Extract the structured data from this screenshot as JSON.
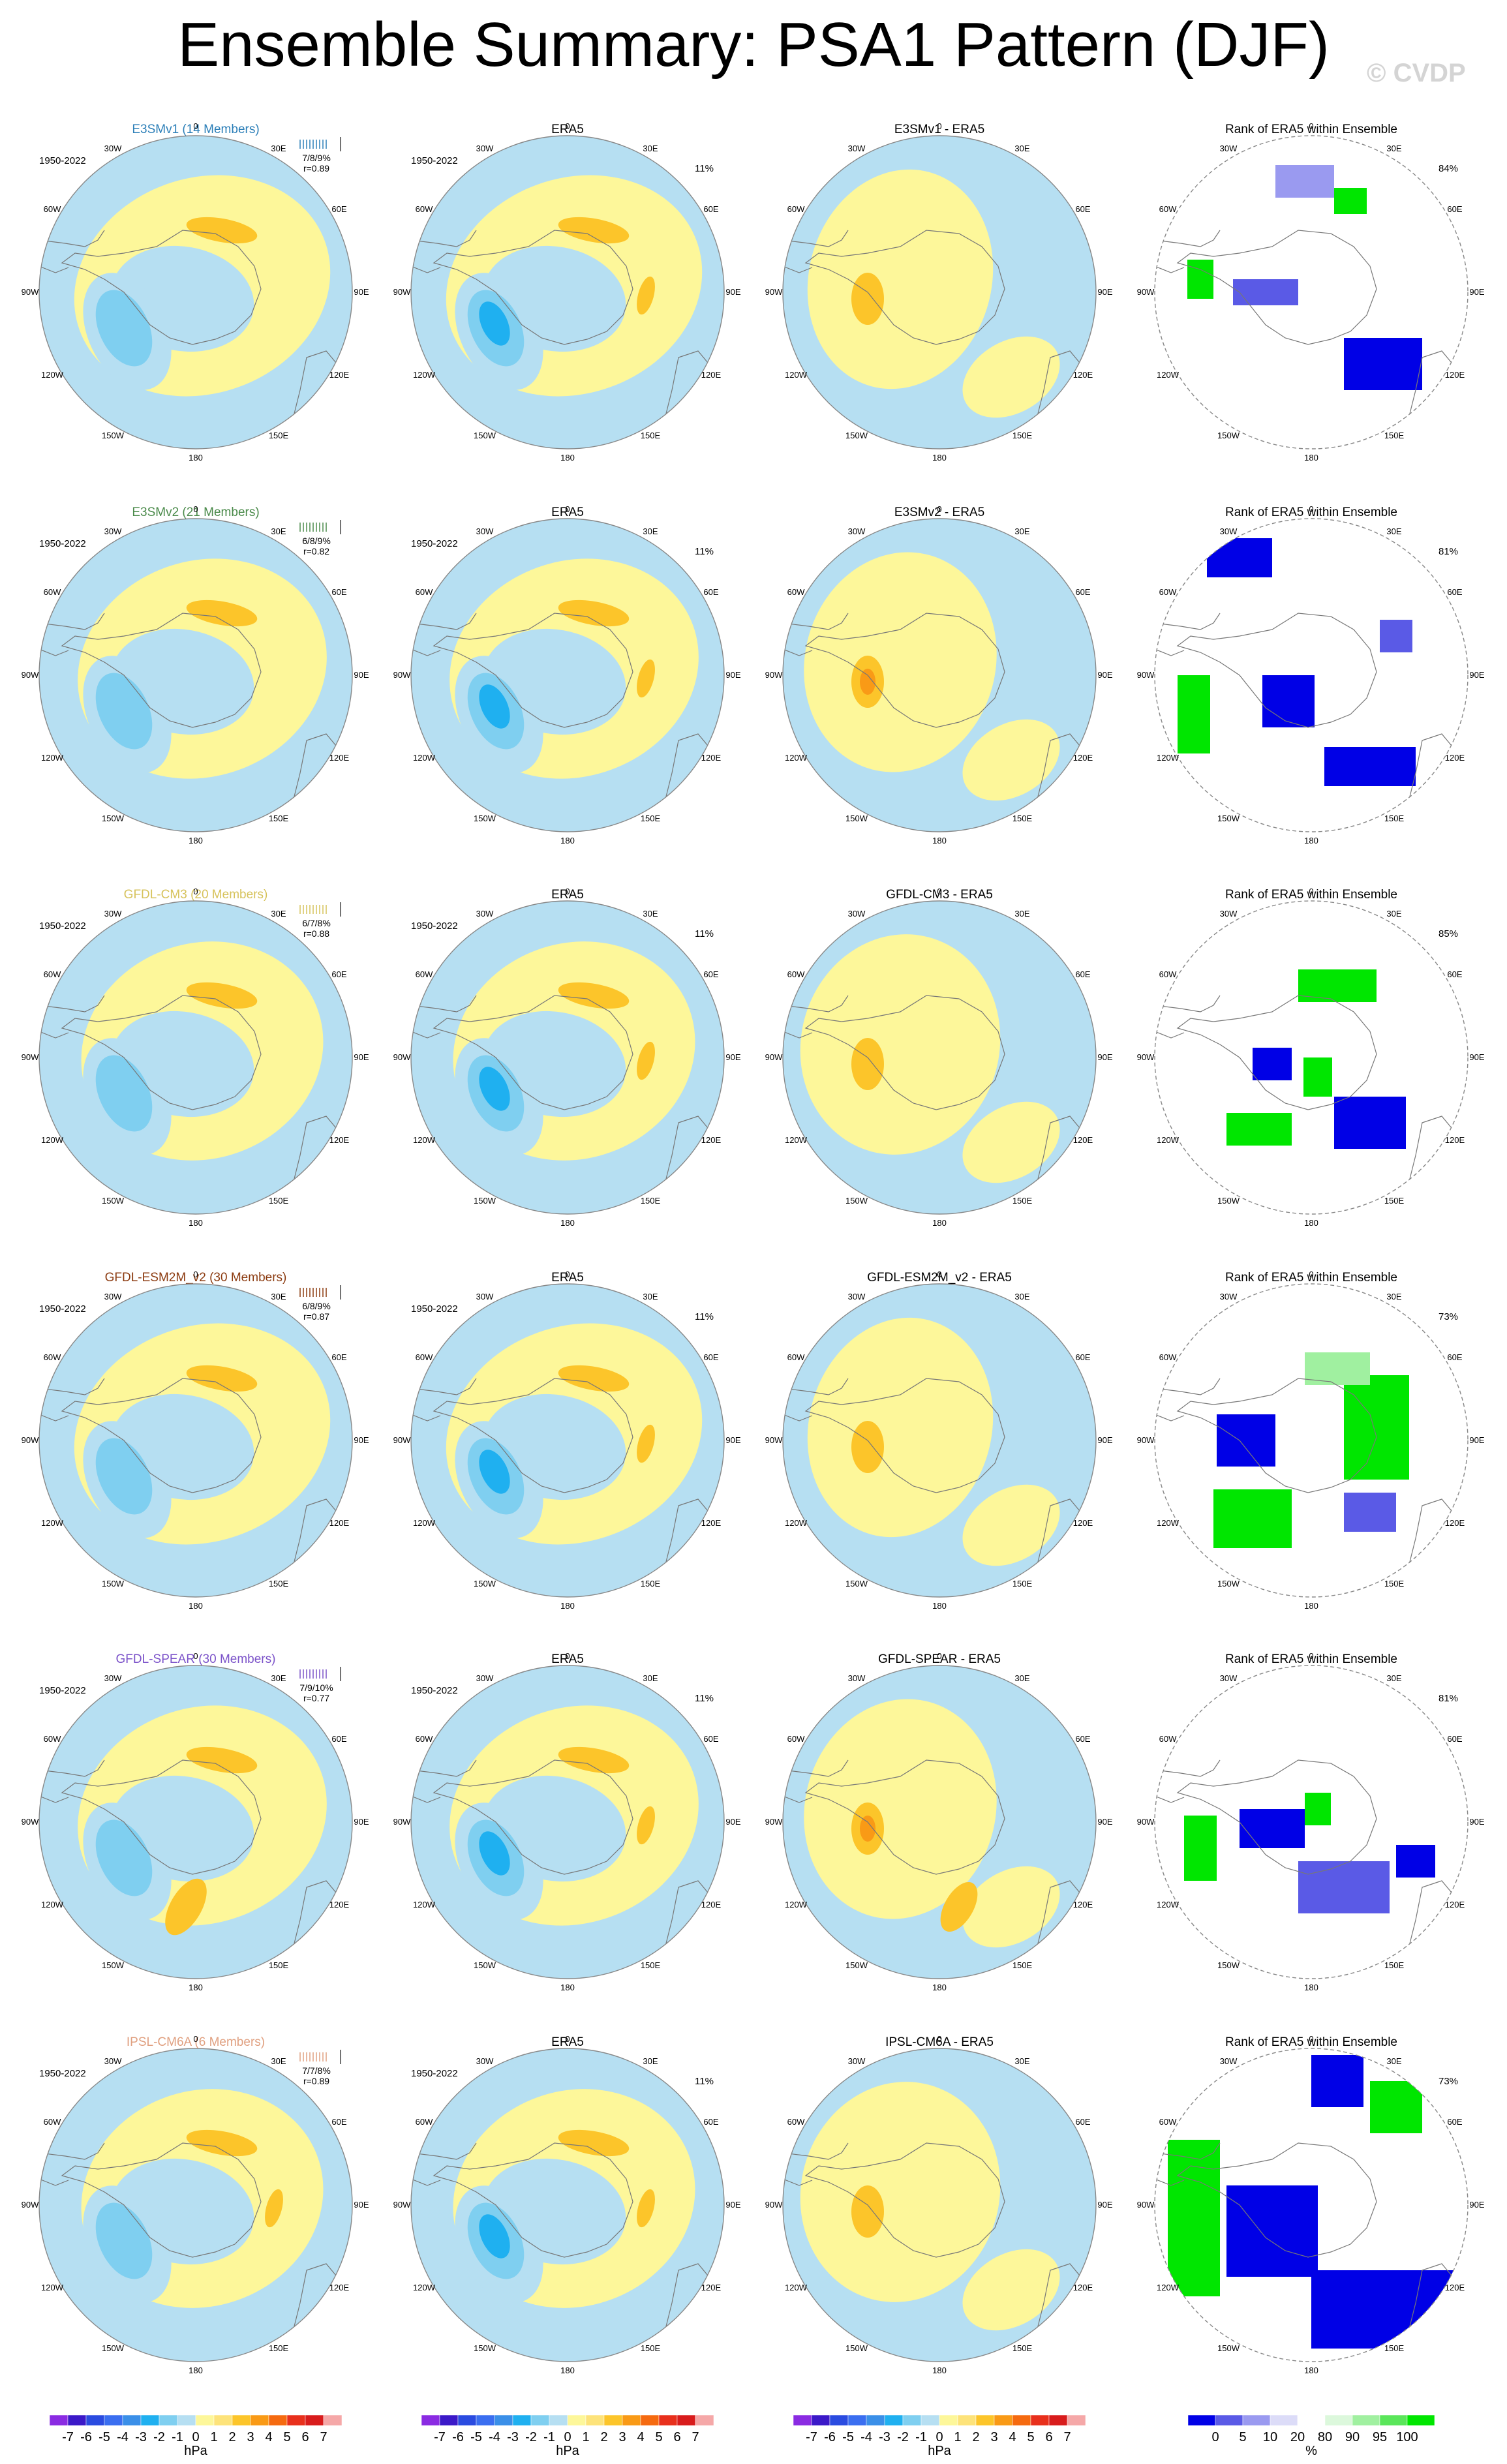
{
  "figure": {
    "title": "Ensemble Summary: PSA1 Pattern (DJF)",
    "watermark": "© CVDP"
  },
  "lon_labels": [
    "0",
    "30E",
    "60E",
    "90E",
    "120E",
    "150E",
    "180",
    "150W",
    "120W",
    "90W",
    "60W",
    "30W"
  ],
  "rows": [
    {
      "model": "E3SMv1 (14 Members)",
      "model_color": "#2c7fb8",
      "period": "1950-2022",
      "stats_pct": "7/8/9%",
      "stats_r": "r=0.89",
      "era5_title": "ERA5",
      "era5_period": "1950-2022",
      "era5_pct": "11%",
      "diff_title": "E3SMv1 - ERA5",
      "rank_title": "Rank of ERA5 within Ensemble",
      "rank_pct": "84%"
    },
    {
      "model": "E3SMv2 (21 Members)",
      "model_color": "#4a8a4a",
      "period": "1950-2022",
      "stats_pct": "6/8/9%",
      "stats_r": "r=0.82",
      "era5_title": "ERA5",
      "era5_period": "1950-2022",
      "era5_pct": "11%",
      "diff_title": "E3SMv2 - ERA5",
      "rank_title": "Rank of ERA5 within Ensemble",
      "rank_pct": "81%"
    },
    {
      "model": "GFDL-CM3 (20 Members)",
      "model_color": "#d6c25a",
      "period": "1950-2022",
      "stats_pct": "6/7/8%",
      "stats_r": "r=0.88",
      "era5_title": "ERA5",
      "era5_period": "1950-2022",
      "era5_pct": "11%",
      "diff_title": "GFDL-CM3 - ERA5",
      "rank_title": "Rank of ERA5 within Ensemble",
      "rank_pct": "85%"
    },
    {
      "model": "GFDL-ESM2M_v2 (30 Members)",
      "model_color": "#8b3a0f",
      "period": "1950-2022",
      "stats_pct": "6/8/9%",
      "stats_r": "r=0.87",
      "era5_title": "ERA5",
      "era5_period": "1950-2022",
      "era5_pct": "11%",
      "diff_title": "GFDL-ESM2M_v2 - ERA5",
      "rank_title": "Rank of ERA5 within Ensemble",
      "rank_pct": "73%"
    },
    {
      "model": "GFDL-SPEAR (30 Members)",
      "model_color": "#7b52c9",
      "period": "1950-2022",
      "stats_pct": "7/9/10%",
      "stats_r": "r=0.77",
      "era5_title": "ERA5",
      "era5_period": "1950-2022",
      "era5_pct": "11%",
      "diff_title": "GFDL-SPEAR - ERA5",
      "rank_title": "Rank of ERA5 within Ensemble",
      "rank_pct": "81%"
    },
    {
      "model": "IPSL-CM6A (6 Members)",
      "model_color": "#e0a080",
      "period": "1950-2022",
      "stats_pct": "7/7/8%",
      "stats_r": "r=0.89",
      "era5_title": "ERA5",
      "era5_period": "1950-2022",
      "era5_pct": "11%",
      "diff_title": "IPSL-CM6A - ERA5",
      "rank_title": "Rank of ERA5 within Ensemble",
      "rank_pct": "73%"
    }
  ],
  "colorbar_hpa": {
    "labels": [
      "-7",
      "-6",
      "-5",
      "-4",
      "-3",
      "-2",
      "-1",
      "0",
      "1",
      "2",
      "3",
      "4",
      "5",
      "6",
      "7"
    ],
    "colors": [
      "#8a2be2",
      "#3b19c8",
      "#2a4be0",
      "#3a6ef0",
      "#3a8fe8",
      "#1fb0f0",
      "#7fcff0",
      "#b6dff2",
      "#fdf79a",
      "#fde37a",
      "#fcc52a",
      "#f99a16",
      "#f56a10",
      "#e8301c",
      "#d81c1c",
      "#f5a8a8"
    ],
    "unit": "hPa"
  },
  "colorbar_rank": {
    "labels": [
      "0",
      "5",
      "10",
      "20",
      "80",
      "90",
      "95",
      "100"
    ],
    "colors": [
      "#0000e6",
      "#5a5ae6",
      "#9a9af0",
      "#dcdcf8",
      "#ffffff",
      "#dcf8dc",
      "#a0f0a0",
      "#5ae65a",
      "#00e600"
    ],
    "unit": "%"
  },
  "colors": {
    "positive_light": "#fdf79a",
    "positive_mid": "#fcc52a",
    "positive_strong": "#f99a16",
    "negative_light": "#b6dff2",
    "negative_mid": "#7fcff0",
    "negative_strong": "#1fb0f0",
    "rank_blue": "#0000e6",
    "rank_green": "#00e600"
  }
}
